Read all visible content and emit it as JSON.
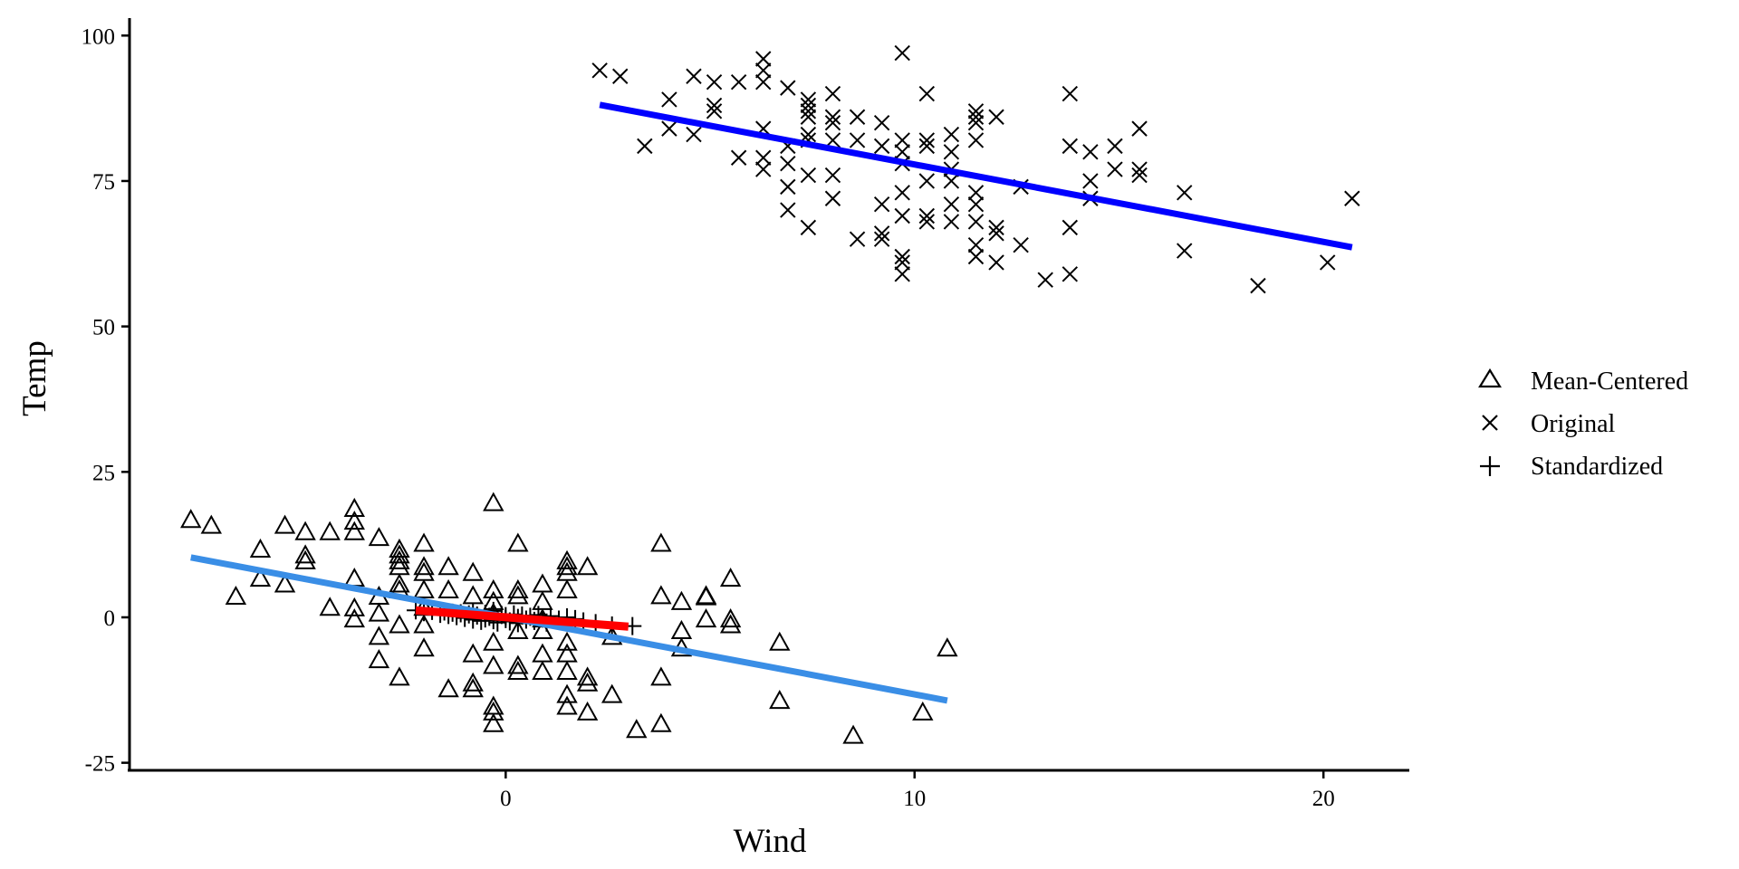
{
  "chart_data": {
    "type": "scatter",
    "title": "",
    "xlabel": "Wind",
    "ylabel": "Temp",
    "xlim": [
      -9.2,
      22.1
    ],
    "ylim": [
      -26.3,
      103.0
    ],
    "xticks": [
      0,
      10,
      20
    ],
    "yticks": [
      -25,
      0,
      25,
      50,
      75,
      100
    ],
    "x_tick_labels": [
      "0",
      "10",
      "20"
    ],
    "y_tick_labels": [
      "-25",
      "0",
      "25",
      "50",
      "75",
      "100"
    ],
    "grid": false,
    "legend_position": "right",
    "legend": [
      "Mean-Centered",
      "Original",
      "Standardized"
    ],
    "series": [
      {
        "name": "Mean-Centered",
        "marker": "triangle",
        "points": [
          [
            -7.7,
            16.7
          ],
          [
            -7.2,
            15.7
          ],
          [
            -6.6,
            3.5
          ],
          [
            -6.0,
            11.6
          ],
          [
            -6.0,
            6.6
          ],
          [
            -5.4,
            15.7
          ],
          [
            -5.4,
            5.6
          ],
          [
            -4.9,
            14.6
          ],
          [
            -4.9,
            10.6
          ],
          [
            -4.9,
            9.6
          ],
          [
            -4.3,
            14.6
          ],
          [
            -4.3,
            1.6
          ],
          [
            -3.7,
            18.6
          ],
          [
            -3.7,
            16.4
          ],
          [
            -3.7,
            14.6
          ],
          [
            -3.7,
            6.6
          ],
          [
            -3.7,
            1.5
          ],
          [
            -3.7,
            -0.4
          ],
          [
            -3.1,
            13.6
          ],
          [
            -3.1,
            3.5
          ],
          [
            -3.1,
            0.6
          ],
          [
            -3.1,
            -3.4
          ],
          [
            -3.1,
            -7.4
          ],
          [
            -2.6,
            11.6
          ],
          [
            -2.6,
            10.6
          ],
          [
            -2.6,
            9.6
          ],
          [
            -2.6,
            8.6
          ],
          [
            -2.6,
            5.6
          ],
          [
            -2.6,
            4.6
          ],
          [
            -2.6,
            -1.4
          ],
          [
            -2.6,
            -10.4
          ],
          [
            -2.0,
            12.6
          ],
          [
            -2.0,
            8.6
          ],
          [
            -2.0,
            7.6
          ],
          [
            -2.0,
            4.6
          ],
          [
            -2.0,
            1.6
          ],
          [
            -2.0,
            -1.4
          ],
          [
            -2.0,
            -5.4
          ],
          [
            -1.4,
            8.6
          ],
          [
            -1.4,
            4.6
          ],
          [
            -1.4,
            -12.4
          ],
          [
            -0.8,
            7.6
          ],
          [
            -0.8,
            3.6
          ],
          [
            -0.8,
            -6.4
          ],
          [
            -0.8,
            -11.4
          ],
          [
            -0.8,
            -12.4
          ],
          [
            -0.3,
            19.6
          ],
          [
            -0.3,
            4.6
          ],
          [
            -0.3,
            2.6
          ],
          [
            -0.3,
            0.6
          ],
          [
            -0.3,
            -4.4
          ],
          [
            -0.3,
            -8.4
          ],
          [
            -0.3,
            -15.4
          ],
          [
            -0.3,
            -16.4
          ],
          [
            -0.3,
            -18.4
          ],
          [
            0.3,
            12.6
          ],
          [
            0.3,
            4.6
          ],
          [
            0.3,
            3.6
          ],
          [
            0.3,
            -2.4
          ],
          [
            0.3,
            -8.4
          ],
          [
            0.3,
            -9.4
          ],
          [
            0.9,
            5.6
          ],
          [
            0.9,
            2.6
          ],
          [
            0.9,
            -0.4
          ],
          [
            0.9,
            -2.4
          ],
          [
            0.9,
            -6.4
          ],
          [
            0.9,
            -9.4
          ],
          [
            1.5,
            9.6
          ],
          [
            1.5,
            8.6
          ],
          [
            1.5,
            7.6
          ],
          [
            1.5,
            4.6
          ],
          [
            1.5,
            -4.4
          ],
          [
            1.5,
            -6.4
          ],
          [
            1.5,
            -9.4
          ],
          [
            1.5,
            -13.4
          ],
          [
            1.5,
            -15.4
          ],
          [
            2.0,
            8.6
          ],
          [
            2.0,
            -10.4
          ],
          [
            2.0,
            -11.4
          ],
          [
            2.0,
            -16.4
          ],
          [
            2.6,
            -3.4
          ],
          [
            2.6,
            -13.4
          ],
          [
            3.2,
            -19.4
          ],
          [
            3.8,
            12.6
          ],
          [
            3.8,
            3.6
          ],
          [
            3.8,
            -10.4
          ],
          [
            3.8,
            -18.4
          ],
          [
            4.3,
            2.6
          ],
          [
            4.3,
            -2.4
          ],
          [
            4.3,
            -5.4
          ],
          [
            4.9,
            3.6
          ],
          [
            4.9,
            3.4
          ],
          [
            4.9,
            -0.4
          ],
          [
            5.5,
            6.6
          ],
          [
            5.5,
            -0.4
          ],
          [
            5.5,
            -1.4
          ],
          [
            6.7,
            -4.4
          ],
          [
            6.7,
            -14.4
          ],
          [
            8.5,
            -20.4
          ],
          [
            10.2,
            -16.4
          ],
          [
            10.8,
            -5.4
          ]
        ]
      },
      {
        "name": "Original",
        "marker": "x",
        "points": [
          [
            2.3,
            94
          ],
          [
            2.8,
            93
          ],
          [
            3.4,
            81
          ],
          [
            4.0,
            89
          ],
          [
            4.0,
            84
          ],
          [
            4.6,
            93
          ],
          [
            4.6,
            83
          ],
          [
            5.1,
            92
          ],
          [
            5.1,
            88
          ],
          [
            5.1,
            87
          ],
          [
            5.7,
            92
          ],
          [
            5.7,
            79
          ],
          [
            6.3,
            96
          ],
          [
            6.3,
            94
          ],
          [
            6.3,
            92
          ],
          [
            6.3,
            84
          ],
          [
            6.3,
            79
          ],
          [
            6.3,
            77
          ],
          [
            6.9,
            91
          ],
          [
            6.9,
            81
          ],
          [
            6.9,
            78
          ],
          [
            6.9,
            74
          ],
          [
            6.9,
            70
          ],
          [
            7.4,
            89
          ],
          [
            7.4,
            88
          ],
          [
            7.4,
            87
          ],
          [
            7.4,
            86
          ],
          [
            7.4,
            83
          ],
          [
            7.4,
            82
          ],
          [
            7.4,
            76
          ],
          [
            7.4,
            67
          ],
          [
            8.0,
            90
          ],
          [
            8.0,
            86
          ],
          [
            8.0,
            85
          ],
          [
            8.0,
            82
          ],
          [
            8.0,
            76
          ],
          [
            8.0,
            72
          ],
          [
            8.6,
            86
          ],
          [
            8.6,
            82
          ],
          [
            8.6,
            65
          ],
          [
            9.2,
            85
          ],
          [
            9.2,
            81
          ],
          [
            9.2,
            71
          ],
          [
            9.2,
            66
          ],
          [
            9.2,
            65
          ],
          [
            9.7,
            97
          ],
          [
            9.7,
            82
          ],
          [
            9.7,
            80
          ],
          [
            9.7,
            78
          ],
          [
            9.7,
            73
          ],
          [
            9.7,
            69
          ],
          [
            9.7,
            62
          ],
          [
            9.7,
            61
          ],
          [
            9.7,
            59
          ],
          [
            10.3,
            90
          ],
          [
            10.3,
            82
          ],
          [
            10.3,
            81
          ],
          [
            10.3,
            75
          ],
          [
            10.3,
            69
          ],
          [
            10.3,
            68
          ],
          [
            10.9,
            83
          ],
          [
            10.9,
            80
          ],
          [
            10.9,
            77
          ],
          [
            10.9,
            75
          ],
          [
            10.9,
            71
          ],
          [
            10.9,
            68
          ],
          [
            11.5,
            87
          ],
          [
            11.5,
            86
          ],
          [
            11.5,
            85
          ],
          [
            11.5,
            82
          ],
          [
            11.5,
            73
          ],
          [
            11.5,
            71
          ],
          [
            11.5,
            68
          ],
          [
            11.5,
            64
          ],
          [
            11.5,
            62
          ],
          [
            12.0,
            86
          ],
          [
            12.0,
            67
          ],
          [
            12.0,
            66
          ],
          [
            12.0,
            61
          ],
          [
            12.6,
            74
          ],
          [
            12.6,
            64
          ],
          [
            13.2,
            58
          ],
          [
            13.8,
            90
          ],
          [
            13.8,
            81
          ],
          [
            13.8,
            67
          ],
          [
            13.8,
            59
          ],
          [
            14.3,
            80
          ],
          [
            14.3,
            75
          ],
          [
            14.3,
            72
          ],
          [
            14.9,
            81
          ],
          [
            14.9,
            77
          ],
          [
            15.5,
            84
          ],
          [
            15.5,
            77
          ],
          [
            15.5,
            76
          ],
          [
            16.6,
            73
          ],
          [
            16.6,
            63
          ],
          [
            18.4,
            57
          ],
          [
            20.1,
            61
          ],
          [
            20.7,
            72
          ]
        ]
      },
      {
        "name": "Standardized",
        "marker": "plus",
        "points": [
          [
            -2.2,
            1.2
          ],
          [
            -2.0,
            0.9
          ],
          [
            -1.8,
            1.1
          ],
          [
            -1.6,
            0.6
          ],
          [
            -1.5,
            1.0
          ],
          [
            -1.4,
            0.4
          ],
          [
            -1.3,
            0.8
          ],
          [
            -1.2,
            0.2
          ],
          [
            -1.1,
            0.7
          ],
          [
            -1.0,
            -0.1
          ],
          [
            -0.9,
            0.5
          ],
          [
            -0.8,
            0.9
          ],
          [
            -0.8,
            -0.4
          ],
          [
            -0.7,
            0.3
          ],
          [
            -0.6,
            -0.6
          ],
          [
            -0.5,
            0.6
          ],
          [
            -0.5,
            -0.2
          ],
          [
            -0.4,
            0.1
          ],
          [
            -0.3,
            1.1
          ],
          [
            -0.3,
            -0.5
          ],
          [
            -0.2,
            -0.9
          ],
          [
            -0.1,
            0.4
          ],
          [
            0.0,
            -0.3
          ],
          [
            0.0,
            0.2
          ],
          [
            0.1,
            -0.7
          ],
          [
            0.2,
            0.5
          ],
          [
            0.3,
            -0.1
          ],
          [
            0.3,
            -1.0
          ],
          [
            0.4,
            0.3
          ],
          [
            0.5,
            -0.4
          ],
          [
            0.6,
            0.1
          ],
          [
            0.7,
            -0.6
          ],
          [
            0.8,
            0.4
          ],
          [
            0.9,
            -0.2
          ],
          [
            1.0,
            -0.9
          ],
          [
            1.1,
            0.2
          ],
          [
            1.3,
            -0.4
          ],
          [
            1.5,
            0.0
          ],
          [
            1.7,
            -0.3
          ],
          [
            1.9,
            -0.7
          ],
          [
            2.2,
            -1.0
          ],
          [
            2.6,
            -1.4
          ],
          [
            3.1,
            -1.5
          ]
        ]
      }
    ],
    "fit_lines": [
      {
        "name": "Original fit",
        "color": "#0000ff",
        "x": [
          2.3,
          20.7
        ],
        "y": [
          88.1,
          63.6
        ]
      },
      {
        "name": "Mean-Centered fit",
        "color": "#3a8ee6",
        "x": [
          -7.7,
          10.8
        ],
        "y": [
          10.3,
          -14.3
        ]
      },
      {
        "name": "Standardized fit",
        "color": "#ff0000",
        "x": [
          -2.2,
          3.0
        ],
        "y": [
          1.2,
          -1.6
        ]
      }
    ]
  }
}
